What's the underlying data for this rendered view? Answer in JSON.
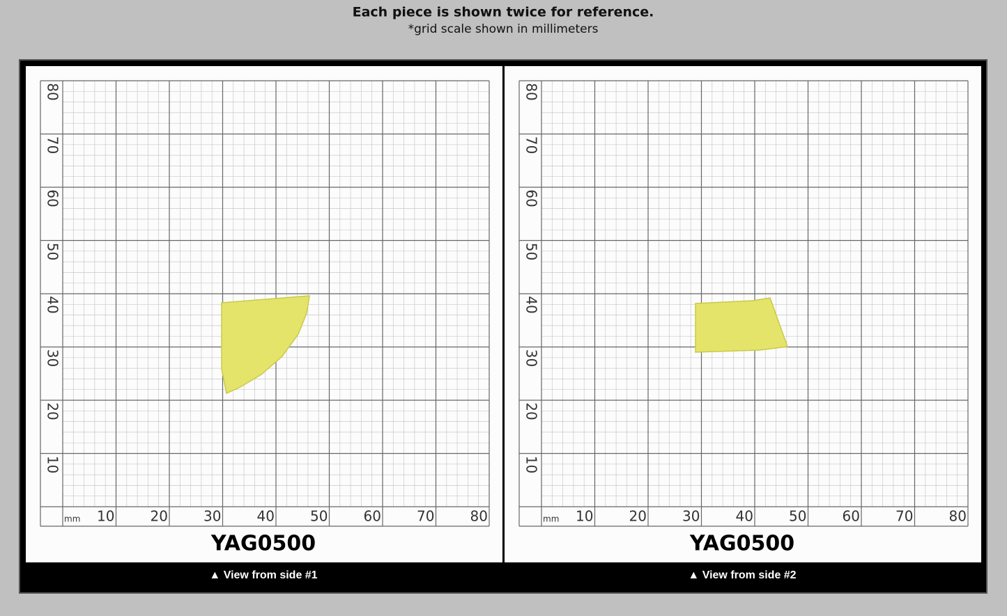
{
  "header": {
    "title": "Each piece is shown twice for reference.",
    "subtitle": "*grid scale shown in millimeters"
  },
  "panels": [
    {
      "unit": "mm",
      "x_labels": [
        10,
        20,
        30,
        40,
        50,
        60,
        70,
        80
      ],
      "y_labels": [
        80,
        70,
        60,
        50,
        40,
        30,
        20,
        10
      ],
      "sample_id": "YAG0500",
      "caption": "▲ View from side #1"
    },
    {
      "unit": "mm",
      "x_labels": [
        10,
        20,
        30,
        40,
        50,
        60,
        70,
        80
      ],
      "y_labels": [
        80,
        70,
        60,
        50,
        40,
        30,
        20,
        10
      ],
      "sample_id": "YAG0500",
      "caption": "▲ View from side #2"
    }
  ]
}
